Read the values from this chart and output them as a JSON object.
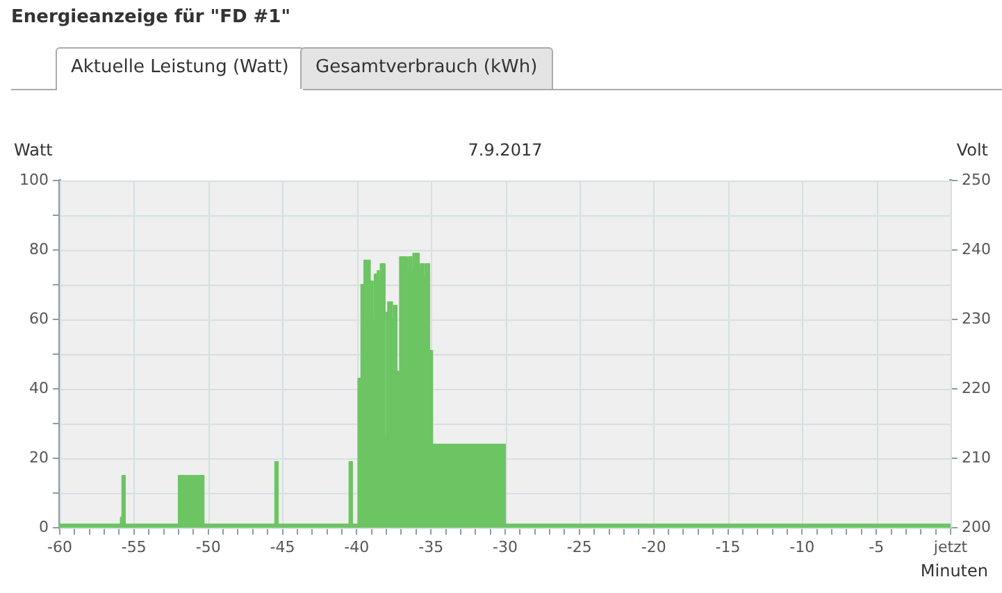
{
  "chart_data": {
    "type": "area",
    "title": "Energieanzeige für \"FD #1\"",
    "subtitle": "7.9.2017",
    "xlabel": "Minuten",
    "ylabel": "Watt",
    "y2label": "Volt",
    "annotations": [
      "Aktuelle Leistung (Watt)",
      "Gesamtverbrauch (kWh)"
    ],
    "x": [
      -60,
      -55.9,
      -55.9,
      -55.8,
      -55.8,
      -55.6,
      -55.6,
      -52,
      -52,
      -50.3,
      -50.3,
      -45.5,
      -45.5,
      -45.3,
      -45.3,
      -40.5,
      -40.5,
      -40.3,
      -40.3,
      -39.9,
      -39.9,
      -39.7,
      -39.7,
      -39.5,
      -39.5,
      -39.1,
      -39.1,
      -38.9,
      -38.9,
      -38.8,
      -38.8,
      -38.6,
      -38.6,
      -38.5,
      -38.5,
      -38.4,
      -38.4,
      -38.1,
      -38.1,
      -38,
      -38,
      -37.9,
      -37.9,
      -37.6,
      -37.6,
      -37.5,
      -37.5,
      -37.3,
      -37.3,
      -37.1,
      -37.1,
      -36.6,
      -36.6,
      -36.5,
      -36.5,
      -36.3,
      -36.3,
      -36.2,
      -36.2,
      -35.8,
      -35.8,
      -35.7,
      -35.7,
      -35.5,
      -35.5,
      -35.4,
      -35.4,
      -35.1,
      -35.1,
      -34.9,
      -34.9,
      -30,
      -30,
      0
    ],
    "series": [
      {
        "color": "#6cc463",
        "values": [
          1,
          1,
          3,
          3,
          15,
          15,
          1,
          1,
          15,
          15,
          1,
          1,
          19,
          19,
          1,
          1,
          19,
          19,
          1,
          1,
          43,
          43,
          70,
          70,
          77,
          77,
          71,
          71,
          60,
          60,
          73,
          73,
          74,
          74,
          71,
          71,
          76,
          76,
          26,
          26,
          62,
          62,
          65,
          65,
          60,
          60,
          64,
          64,
          45,
          45,
          78,
          78,
          74,
          74,
          78,
          78,
          74,
          74,
          79,
          79,
          75,
          75,
          76,
          76,
          72,
          72,
          76,
          76,
          51,
          51,
          24,
          24,
          1,
          1
        ]
      }
    ],
    "xlim": [
      -60,
      0
    ],
    "xticks": [
      -60,
      {
        "value": -59,
        "label": null
      },
      {
        "value": -58,
        "label": null
      },
      {
        "value": -57,
        "label": null
      },
      {
        "value": -56,
        "label": null
      },
      -55,
      {
        "value": -54,
        "label": null
      },
      {
        "value": -53,
        "label": null
      },
      {
        "value": -52,
        "label": null
      },
      {
        "value": -51,
        "label": null
      },
      -50,
      {
        "value": -49,
        "label": null
      },
      {
        "value": -48,
        "label": null
      },
      {
        "value": -47,
        "label": null
      },
      {
        "value": -46,
        "label": null
      },
      -45,
      {
        "value": -44,
        "label": null
      },
      {
        "value": -43,
        "label": null
      },
      {
        "value": -42,
        "label": null
      },
      {
        "value": -41,
        "label": null
      },
      -40,
      {
        "value": -39,
        "label": null
      },
      {
        "value": -38,
        "label": null
      },
      {
        "value": -37,
        "label": null
      },
      {
        "value": -36,
        "label": null
      },
      -35,
      {
        "value": -34,
        "label": null
      },
      {
        "value": -33,
        "label": null
      },
      {
        "value": -32,
        "label": null
      },
      {
        "value": -31,
        "label": null
      },
      -30,
      {
        "value": -29,
        "label": null
      },
      {
        "value": -28,
        "label": null
      },
      {
        "value": -27,
        "label": null
      },
      {
        "value": -26,
        "label": null
      },
      -25,
      {
        "value": -24,
        "label": null
      },
      {
        "value": -23,
        "label": null
      },
      {
        "value": -22,
        "label": null
      },
      {
        "value": -21,
        "label": null
      },
      -20,
      {
        "value": -19,
        "label": null
      },
      {
        "value": -18,
        "label": null
      },
      {
        "value": -17,
        "label": null
      },
      {
        "value": -16,
        "label": null
      },
      -15,
      {
        "value": -14,
        "label": null
      },
      {
        "value": -13,
        "label": null
      },
      {
        "value": -12,
        "label": null
      },
      {
        "value": -11,
        "label": null
      },
      -10,
      {
        "value": -9,
        "label": null
      },
      {
        "value": -8,
        "label": null
      },
      {
        "value": -7,
        "label": null
      },
      {
        "value": -6,
        "label": null
      },
      -5,
      {
        "value": -4,
        "label": null
      },
      {
        "value": -3,
        "label": null
      },
      {
        "value": -2,
        "label": null
      },
      {
        "value": -1,
        "label": null
      },
      {
        "value": 0,
        "label": "jetzt"
      }
    ],
    "ylim": [
      0,
      100
    ],
    "yticks": [
      0,
      {
        "value": 10,
        "label": null
      },
      20,
      {
        "value": 30,
        "label": null
      },
      40,
      {
        "value": 50,
        "label": null
      },
      60,
      {
        "value": 70,
        "label": null
      },
      80,
      {
        "value": 90,
        "label": null
      },
      100
    ],
    "y2lim": [
      200,
      250
    ],
    "y2ticks": [
      200,
      210,
      220,
      230,
      240,
      250
    ],
    "grid": true,
    "legend": false,
    "marker": "none"
  }
}
